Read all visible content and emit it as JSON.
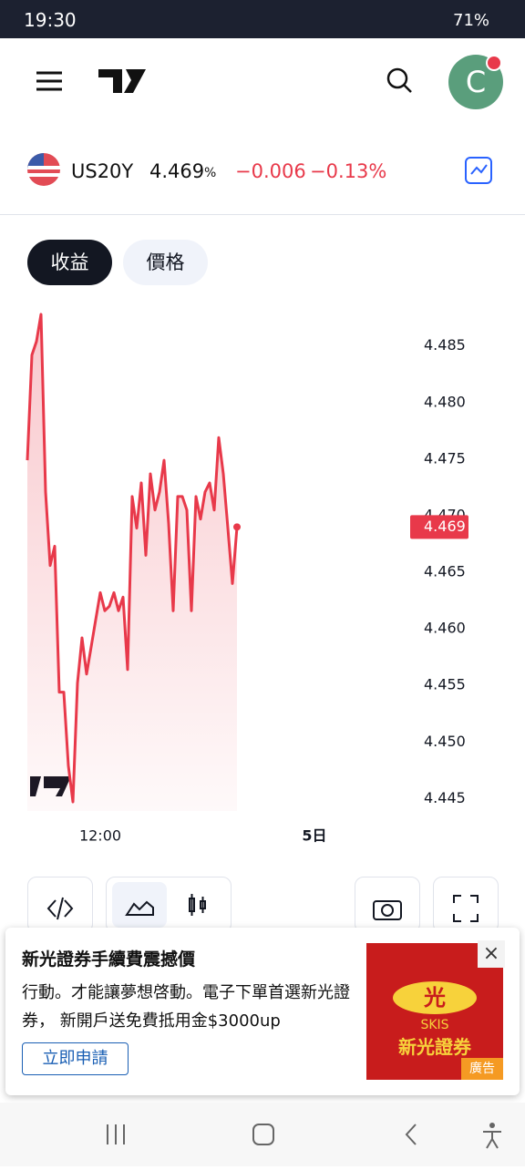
{
  "status_bar": {
    "time": "19:30",
    "battery": "71%"
  },
  "quote": {
    "symbol": "US20Y",
    "price": "4.469",
    "unit": "%",
    "change": "−0.006",
    "change_pct": "−0.13%"
  },
  "tabs": [
    "收益",
    "價格"
  ],
  "chart_data": {
    "type": "line",
    "color": "#e8394a",
    "x": [
      0,
      1,
      2,
      3,
      4,
      5,
      6,
      7,
      8,
      9,
      10,
      11,
      12,
      13,
      14,
      15,
      16,
      17,
      18,
      19,
      20,
      21,
      22,
      23,
      24,
      25,
      26,
      27,
      28,
      29,
      30,
      31,
      32,
      33,
      34,
      35,
      36,
      37,
      38,
      39,
      40,
      41,
      42,
      43,
      44,
      45,
      46
    ],
    "values": [
      4.4749,
      4.4842,
      4.4854,
      4.4878,
      4.4721,
      4.4656,
      4.4673,
      4.4544,
      4.4544,
      4.4479,
      4.4447,
      4.4552,
      4.4592,
      4.456,
      4.4584,
      4.4608,
      4.4632,
      4.4616,
      4.462,
      4.4632,
      4.4616,
      4.4628,
      4.4564,
      4.4717,
      4.4689,
      4.4729,
      4.4665,
      4.4737,
      4.4705,
      4.4721,
      4.4749,
      4.4693,
      4.4616,
      4.4717,
      4.4717,
      4.4705,
      4.4616,
      4.4717,
      4.4697,
      4.4721,
      4.4729,
      4.4705,
      4.4769,
      4.4737,
      4.4689,
      4.464,
      4.469
    ],
    "xlim": [
      0,
      84
    ],
    "xticks": [
      {
        "value": 16,
        "label": "12:00"
      },
      {
        "value": 63,
        "label": "5日"
      }
    ],
    "ylim": [
      4.4439,
      4.4886
    ],
    "yticks": [
      4.445,
      {
        "value": 4.45,
        "label": "4.450"
      },
      4.455,
      {
        "value": 4.46,
        "label": "4.460"
      },
      4.465,
      {
        "value": 4.47,
        "label": "4.470"
      },
      4.475,
      {
        "value": 4.48,
        "label": "4.480"
      },
      4.485
    ]
  },
  "ad": {
    "title": "新光證券手續費震撼價",
    "body": "行動。才能讓夢想啓動。電子下單首選新光證券， 新開戶送免費抵用金$3000up",
    "button": "立即申請",
    "logo_char": "光",
    "logo_en": "SKIS",
    "logo_name": "新光證券",
    "badge": "廣告"
  }
}
